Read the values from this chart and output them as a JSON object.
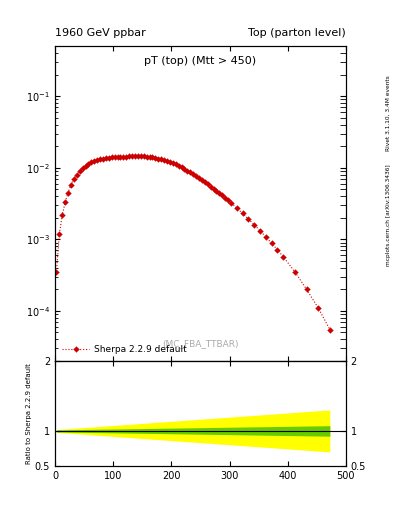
{
  "title_left": "1960 GeV ppbar",
  "title_right": "Top (parton level)",
  "plot_title": "pT (top) (Mtt > 450)",
  "watermark": "(MC_FBA_TTBAR)",
  "right_label_top": "Rivet 3.1.10, 3.4M events",
  "right_label_bot": "mcplots.cern.ch [arXiv:1306.3436]",
  "legend_label": "Sherpa 2.2.9 default",
  "line_color": "#cc0000",
  "marker_size": 3.0,
  "x_values": [
    2.5,
    7.5,
    12.5,
    17.5,
    22.5,
    27.5,
    32.5,
    37.5,
    42.5,
    47.5,
    52.5,
    57.5,
    62.5,
    67.5,
    72.5,
    77.5,
    82.5,
    87.5,
    92.5,
    97.5,
    102.5,
    107.5,
    112.5,
    117.5,
    122.5,
    127.5,
    132.5,
    137.5,
    142.5,
    147.5,
    152.5,
    157.5,
    162.5,
    167.5,
    172.5,
    177.5,
    182.5,
    187.5,
    192.5,
    197.5,
    202.5,
    207.5,
    212.5,
    217.5,
    222.5,
    227.5,
    232.5,
    237.5,
    242.5,
    247.5,
    252.5,
    257.5,
    262.5,
    267.5,
    272.5,
    277.5,
    282.5,
    287.5,
    292.5,
    297.5,
    302.5,
    312.5,
    322.5,
    332.5,
    342.5,
    352.5,
    362.5,
    372.5,
    382.5,
    392.5,
    412.5,
    432.5,
    452.5,
    472.5
  ],
  "y_values": [
    0.00035,
    0.0012,
    0.0022,
    0.0033,
    0.0045,
    0.0058,
    0.007,
    0.008,
    0.009,
    0.0099,
    0.0107,
    0.0114,
    0.012,
    0.0125,
    0.0129,
    0.0132,
    0.0134,
    0.0136,
    0.01375,
    0.0139,
    0.014,
    0.01415,
    0.0142,
    0.01425,
    0.0143,
    0.01435,
    0.0144,
    0.01445,
    0.01445,
    0.0144,
    0.01435,
    0.01425,
    0.0141,
    0.0139,
    0.01365,
    0.0134,
    0.0131,
    0.0128,
    0.0124,
    0.012,
    0.0116,
    0.0111,
    0.0106,
    0.0101,
    0.0096,
    0.0091,
    0.0086,
    0.0081,
    0.0076,
    0.00715,
    0.0067,
    0.00625,
    0.00585,
    0.00545,
    0.0051,
    0.00475,
    0.0044,
    0.0041,
    0.0038,
    0.0035,
    0.00325,
    0.00275,
    0.0023,
    0.00192,
    0.0016,
    0.00132,
    0.00108,
    0.00088,
    0.00071,
    0.00057,
    0.00035,
    0.0002,
    0.00011,
    5.5e-05
  ],
  "xlim": [
    0,
    500
  ],
  "ylim_main": [
    2e-05,
    0.5
  ],
  "ylim_ratio": [
    0.5,
    2.0
  ],
  "ylabel_ratio": "Ratio to Sherpa 2.2.9 default",
  "xticks": [
    0,
    100,
    200,
    300,
    400,
    500
  ],
  "background_color": "#ffffff"
}
